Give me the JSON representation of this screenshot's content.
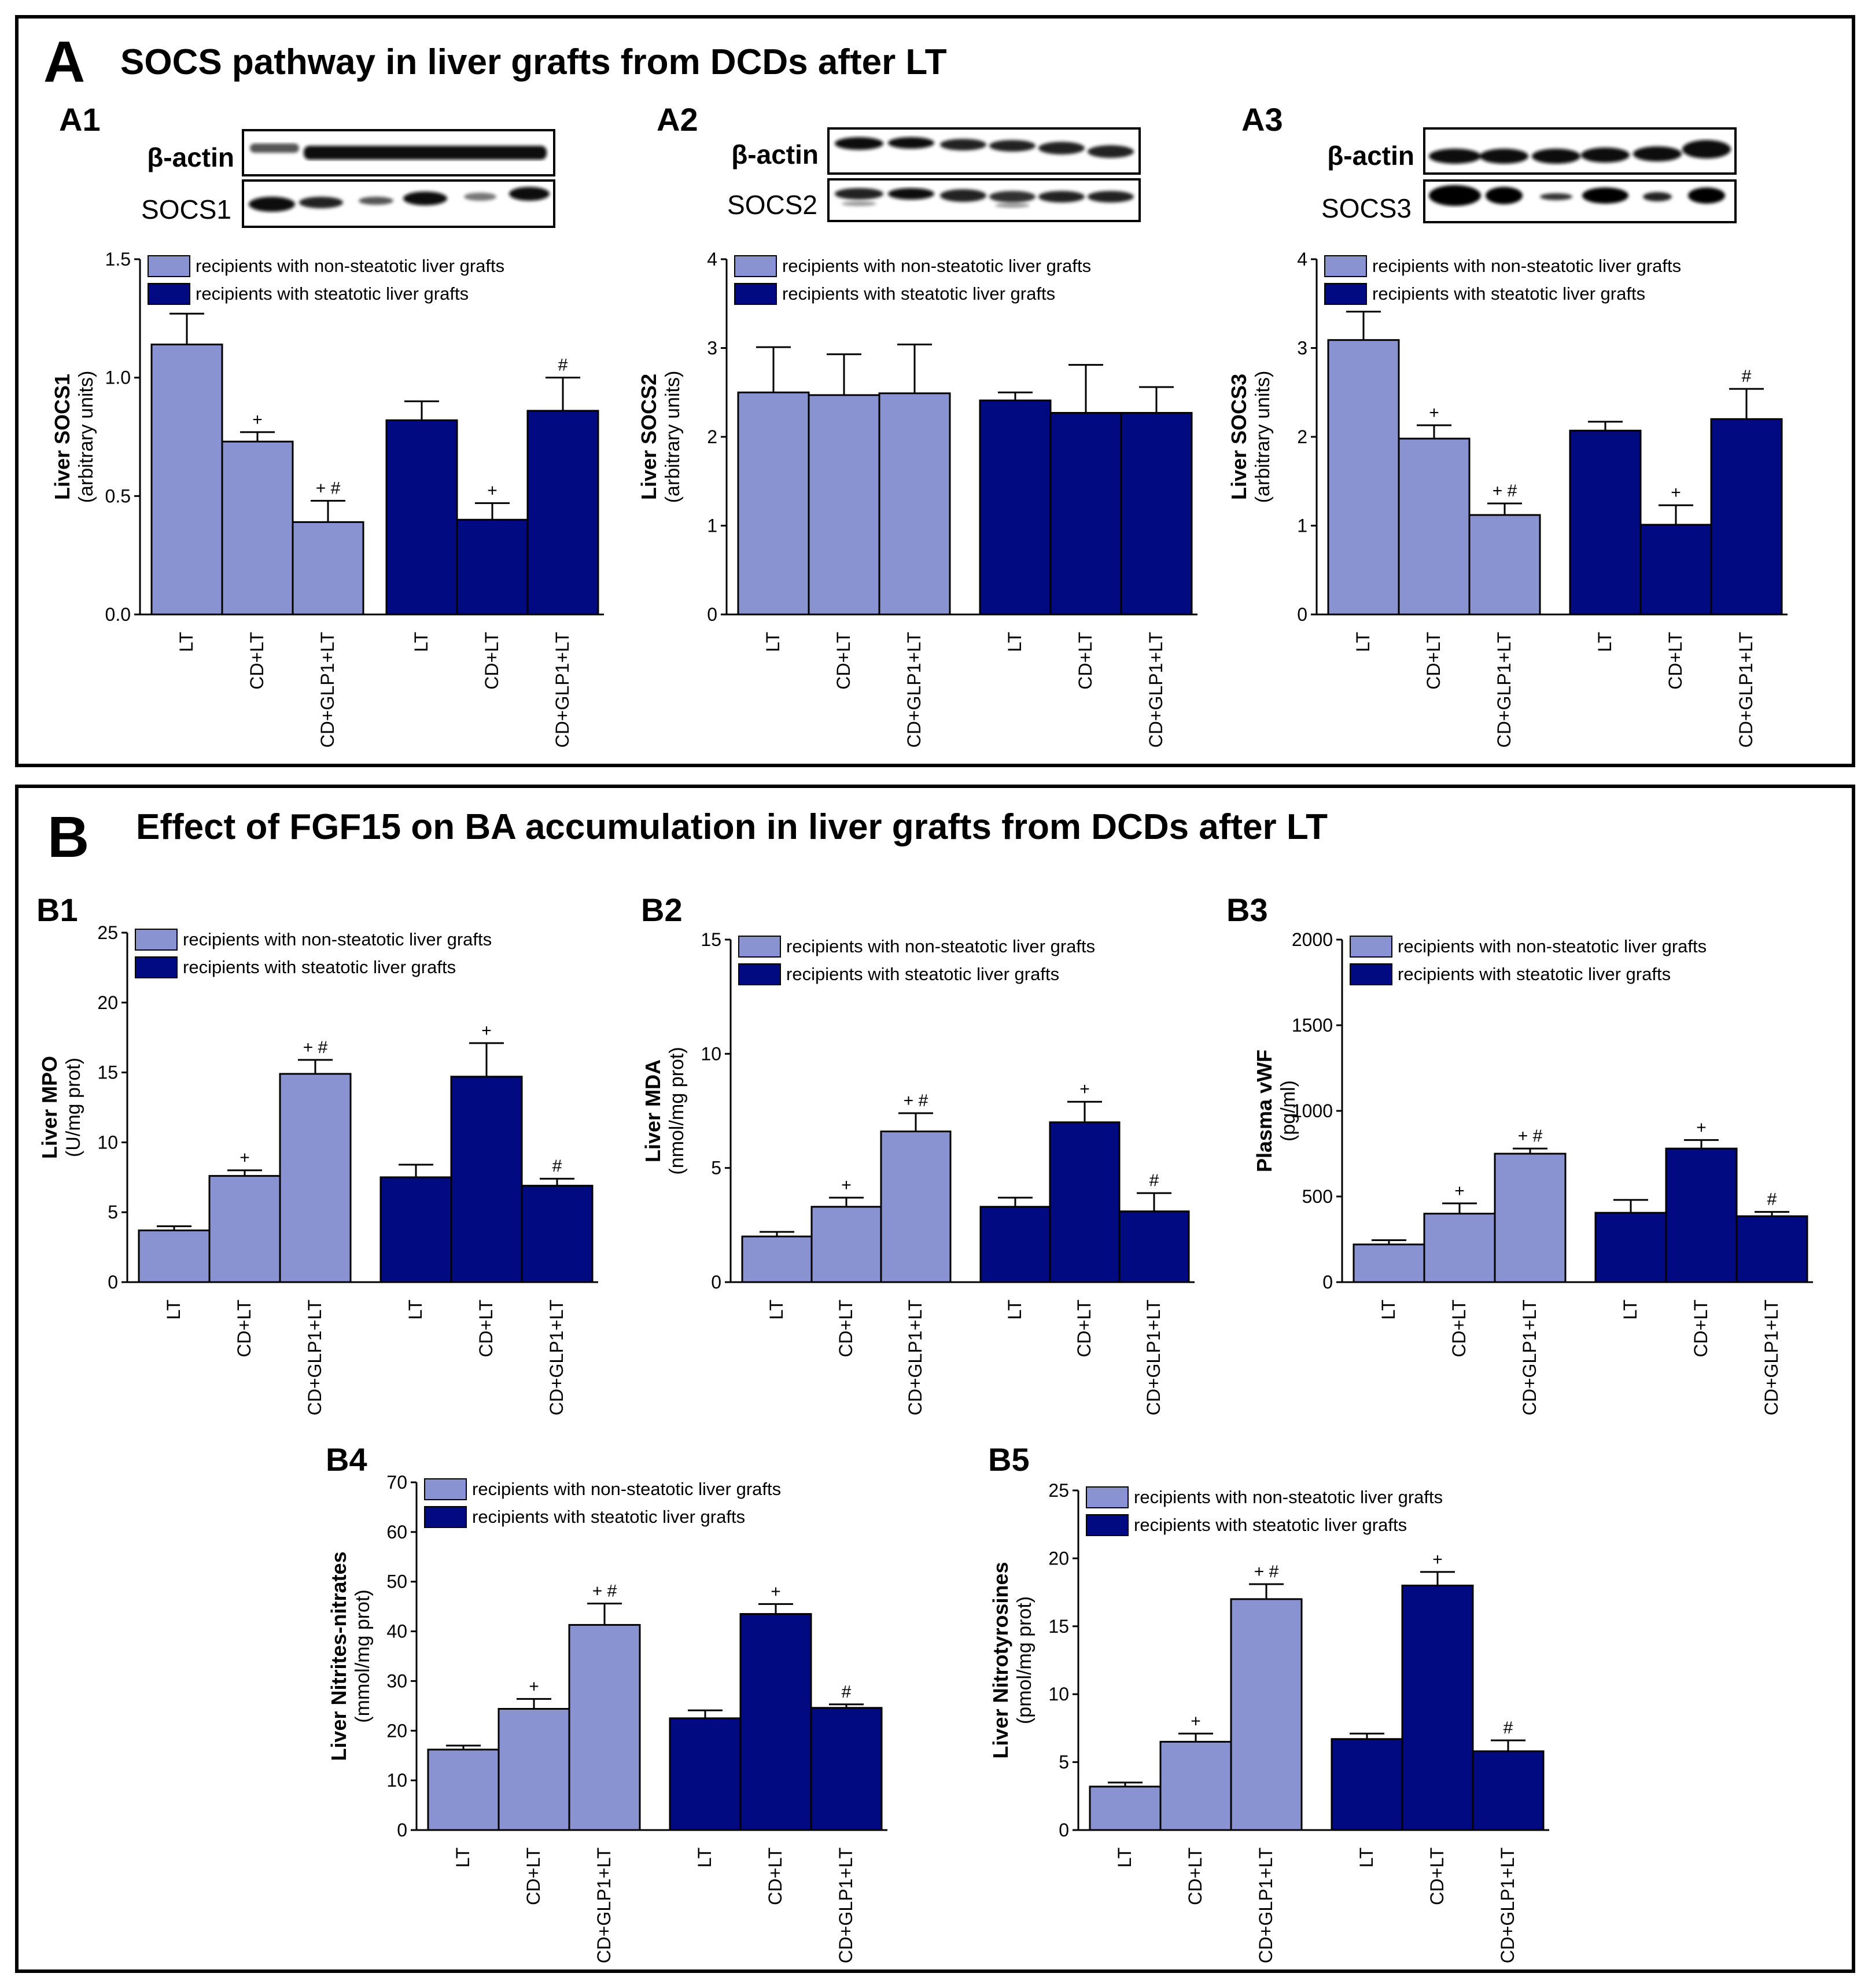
{
  "legend": {
    "non_steatotic": "recipients with non-steatotic liver grafts",
    "steatotic": "recipients with steatotic liver grafts"
  },
  "colors": {
    "non_steatotic": "#8A93D2",
    "steatotic": "#010A80",
    "frame": "#000000"
  },
  "categories": [
    "LT",
    "CD+LT",
    "CD+GLP1+LT",
    "LT",
    "CD+LT",
    "CD+GLP1+LT"
  ],
  "panel_a": {
    "letter": "A",
    "title": "SOCS pathway in liver grafts from DCDs after LT",
    "blots": [
      {
        "id": "A1",
        "top": "β-actin",
        "bottom": "SOCS1"
      },
      {
        "id": "A2",
        "top": "β-actin",
        "bottom": "SOCS2"
      },
      {
        "id": "A3",
        "top": "β-actin",
        "bottom": "SOCS3"
      }
    ]
  },
  "panel_b": {
    "letter": "B",
    "title": "Effect of FGF15 on BA accumulation in liver grafts from DCDs after LT"
  },
  "chart_data": [
    {
      "id": "A1",
      "type": "bar",
      "ylabel": "Liver SOCS1",
      "yunits": "(arbitrary units)",
      "ylim": [
        0,
        1.5
      ],
      "ticks": [
        "0.0",
        "0.5",
        "1.0",
        "1.5"
      ],
      "categories": [
        "LT",
        "CD+LT",
        "CD+GLP1+LT"
      ],
      "series": [
        {
          "name": "recipients with non-steatotic liver grafts",
          "values": [
            1.14,
            0.73,
            0.39
          ],
          "errors": [
            0.13,
            0.04,
            0.09
          ],
          "annotations": [
            "",
            "+",
            "+ #"
          ]
        },
        {
          "name": "recipients with steatotic liver grafts",
          "values": [
            0.82,
            0.4,
            0.86
          ],
          "errors": [
            0.08,
            0.07,
            0.14
          ],
          "annotations": [
            "",
            "+",
            "#"
          ]
        }
      ]
    },
    {
      "id": "A2",
      "type": "bar",
      "ylabel": "Liver SOCS2",
      "yunits": "(arbitrary units)",
      "ylim": [
        0,
        4
      ],
      "ticks": [
        "0",
        "1",
        "2",
        "3",
        "4"
      ],
      "categories": [
        "LT",
        "CD+LT",
        "CD+GLP1+LT"
      ],
      "series": [
        {
          "name": "recipients with non-steatotic liver grafts",
          "values": [
            2.5,
            2.47,
            2.49
          ],
          "errors": [
            0.51,
            0.46,
            0.55
          ],
          "annotations": [
            "",
            "",
            ""
          ]
        },
        {
          "name": "recipients with steatotic liver grafts",
          "values": [
            2.41,
            2.27,
            2.27
          ],
          "errors": [
            0.09,
            0.54,
            0.29
          ],
          "annotations": [
            "",
            "",
            ""
          ]
        }
      ]
    },
    {
      "id": "A3",
      "type": "bar",
      "ylabel": "Liver SOCS3",
      "yunits": "(arbitrary units)",
      "ylim": [
        0,
        4
      ],
      "ticks": [
        "0",
        "1",
        "2",
        "3",
        "4"
      ],
      "categories": [
        "LT",
        "CD+LT",
        "CD+GLP1+LT"
      ],
      "series": [
        {
          "name": "recipients with non-steatotic liver grafts",
          "values": [
            3.09,
            1.98,
            1.12
          ],
          "errors": [
            0.32,
            0.15,
            0.13
          ],
          "annotations": [
            "",
            "+",
            "+ #"
          ]
        },
        {
          "name": "recipients with steatotic liver grafts",
          "values": [
            2.07,
            1.01,
            2.2
          ],
          "errors": [
            0.1,
            0.22,
            0.34
          ],
          "annotations": [
            "",
            "+",
            "#"
          ]
        }
      ]
    },
    {
      "id": "B1",
      "type": "bar",
      "ylabel": "Liver MPO",
      "yunits": "(U/mg prot)",
      "ylim": [
        0,
        25
      ],
      "ticks": [
        "0",
        "5",
        "10",
        "15",
        "20",
        "25"
      ],
      "categories": [
        "LT",
        "CD+LT",
        "CD+GLP1+LT"
      ],
      "series": [
        {
          "name": "recipients with non-steatotic liver grafts",
          "values": [
            3.7,
            7.6,
            14.9
          ],
          "errors": [
            0.3,
            0.4,
            1.0
          ],
          "annotations": [
            "",
            "+",
            "+ #"
          ]
        },
        {
          "name": "recipients with steatotic liver grafts",
          "values": [
            7.5,
            14.7,
            6.9
          ],
          "errors": [
            0.9,
            2.4,
            0.5
          ],
          "annotations": [
            "",
            "+",
            "#"
          ]
        }
      ]
    },
    {
      "id": "B2",
      "type": "bar",
      "ylabel": "Liver MDA",
      "yunits": "(nmol/mg prot)",
      "ylim": [
        0,
        15
      ],
      "ticks": [
        "0",
        "5",
        "10",
        "15"
      ],
      "categories": [
        "LT",
        "CD+LT",
        "CD+GLP1+LT"
      ],
      "series": [
        {
          "name": "recipients with non-steatotic liver grafts",
          "values": [
            2.0,
            3.3,
            6.6
          ],
          "errors": [
            0.2,
            0.4,
            0.8
          ],
          "annotations": [
            "",
            "+",
            "+ #"
          ]
        },
        {
          "name": "recipients with steatotic liver grafts",
          "values": [
            3.3,
            7.0,
            3.1
          ],
          "errors": [
            0.4,
            0.9,
            0.8
          ],
          "annotations": [
            "",
            "+",
            "#"
          ]
        }
      ]
    },
    {
      "id": "B3",
      "type": "bar",
      "ylabel": "Plasma vWF",
      "yunits": "(pg/ml)",
      "ylim": [
        0,
        2000
      ],
      "ticks": [
        "0",
        "500",
        "1000",
        "1500",
        "2000"
      ],
      "categories": [
        "LT",
        "CD+LT",
        "CD+GLP1+LT"
      ],
      "series": [
        {
          "name": "recipients with non-steatotic liver grafts",
          "values": [
            220,
            400,
            750
          ],
          "errors": [
            25,
            60,
            30
          ],
          "annotations": [
            "",
            "+",
            "+ #"
          ]
        },
        {
          "name": "recipients with steatotic liver grafts",
          "values": [
            405,
            780,
            385
          ],
          "errors": [
            75,
            50,
            25
          ],
          "annotations": [
            "",
            "+",
            "#"
          ]
        }
      ]
    },
    {
      "id": "B4",
      "type": "bar",
      "ylabel": "Liver Nitrites-nitrates",
      "yunits": "(mmol/mg prot)",
      "ylim": [
        0,
        70
      ],
      "ticks": [
        "0",
        "10",
        "20",
        "30",
        "40",
        "50",
        "60",
        "70"
      ],
      "categories": [
        "LT",
        "CD+LT",
        "CD+GLP1+LT"
      ],
      "series": [
        {
          "name": "recipients with non-steatotic liver grafts",
          "values": [
            16.2,
            24.4,
            41.3
          ],
          "errors": [
            0.8,
            2.0,
            4.3
          ],
          "annotations": [
            "",
            "+",
            "+ #"
          ]
        },
        {
          "name": "recipients with steatotic liver grafts",
          "values": [
            22.5,
            43.5,
            24.6
          ],
          "errors": [
            1.6,
            2.0,
            0.7
          ],
          "annotations": [
            "",
            "+",
            "#"
          ]
        }
      ]
    },
    {
      "id": "B5",
      "type": "bar",
      "ylabel": "Liver Nitrotyrosines",
      "yunits": "(pmol/mg prot)",
      "ylim": [
        0,
        25
      ],
      "ticks": [
        "0",
        "5",
        "10",
        "15",
        "20",
        "25"
      ],
      "categories": [
        "LT",
        "CD+LT",
        "CD+GLP1+LT"
      ],
      "series": [
        {
          "name": "recipients with non-steatotic liver grafts",
          "values": [
            3.2,
            6.5,
            17.0
          ],
          "errors": [
            0.3,
            0.6,
            1.1
          ],
          "annotations": [
            "",
            "+",
            "+ #"
          ]
        },
        {
          "name": "recipients with steatotic liver grafts",
          "values": [
            6.7,
            18.0,
            5.8
          ],
          "errors": [
            0.4,
            1.0,
            0.8
          ],
          "annotations": [
            "",
            "+",
            "#"
          ]
        }
      ]
    }
  ]
}
